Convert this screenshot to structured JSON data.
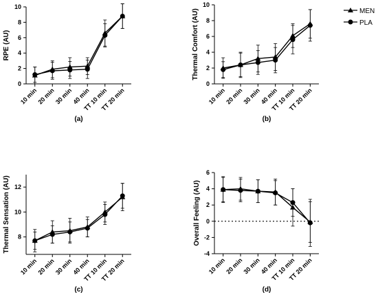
{
  "chart_data": [
    {
      "type": "line",
      "panel": "(a)",
      "ylabel": "RPE (AU)",
      "categories": [
        "10 min",
        "20 min",
        "30 min",
        "40 min",
        "TT 10 min",
        "TT 20 min"
      ],
      "ylim": [
        0,
        10
      ],
      "yticks": [
        0,
        2,
        4,
        6,
        8,
        10
      ],
      "series": [
        {
          "name": "MEN",
          "marker": "triangle",
          "values": [
            1.1,
            1.9,
            2.2,
            2.3,
            6.6,
            8.8
          ],
          "err": [
            1.1,
            1.1,
            1.2,
            1.1,
            1.7,
            1.6
          ]
        },
        {
          "name": "PLA",
          "marker": "circle",
          "values": [
            1.2,
            1.7,
            1.8,
            1.9,
            6.3,
            8.8
          ],
          "err": [
            1.0,
            1.1,
            1.1,
            1.2,
            1.5,
            1.6
          ]
        }
      ]
    },
    {
      "type": "line",
      "panel": "(b)",
      "ylabel": "Thermal Comfort (AU)",
      "categories": [
        "10 min",
        "20 min",
        "30 min",
        "40 min",
        "TT 10 min",
        "TT 20 min"
      ],
      "ylim": [
        0,
        10
      ],
      "yticks": [
        0,
        2,
        4,
        6,
        8,
        10
      ],
      "series": [
        {
          "name": "MEN",
          "marker": "triangle",
          "values": [
            2.0,
            2.4,
            3.2,
            3.4,
            6.1,
            7.6
          ],
          "err": [
            1.3,
            1.6,
            1.7,
            1.7,
            1.5,
            1.8
          ]
        },
        {
          "name": "PLA",
          "marker": "circle",
          "values": [
            1.8,
            2.4,
            2.7,
            3.0,
            5.6,
            7.4
          ],
          "err": [
            1.0,
            1.5,
            1.5,
            1.6,
            1.8,
            2.0
          ]
        }
      ]
    },
    {
      "type": "line",
      "panel": "(c)",
      "ylabel": "Thermal Sensation (AU)",
      "categories": [
        "10 min",
        "20 min",
        "30 min",
        "40 min",
        "TT 10 min",
        "TT 20 min"
      ],
      "ylim": [
        6.6,
        13
      ],
      "yticks": [
        8,
        10,
        12
      ],
      "series": [
        {
          "name": "MEN",
          "marker": "triangle",
          "values": [
            7.7,
            8.4,
            8.5,
            8.8,
            10.0,
            11.2
          ],
          "err": [
            0.9,
            0.9,
            1.0,
            0.8,
            0.8,
            1.1
          ]
        },
        {
          "name": "PLA",
          "marker": "circle",
          "values": [
            7.7,
            8.2,
            8.4,
            8.7,
            9.8,
            11.3
          ],
          "err": [
            0.7,
            0.7,
            0.8,
            0.7,
            0.8,
            1.0
          ]
        }
      ]
    },
    {
      "type": "line",
      "panel": "(d)",
      "ylabel": "Overall Feeling (AU)",
      "categories": [
        "10 min",
        "20 min",
        "30 min",
        "40 min",
        "TT 10 min",
        "TT 20 min"
      ],
      "ylim": [
        -4,
        6
      ],
      "yticks": [
        -4,
        -2,
        0,
        2,
        4,
        6
      ],
      "reference_line": 0,
      "series": [
        {
          "name": "MEN",
          "marker": "triangle",
          "values": [
            3.9,
            4.0,
            3.7,
            3.6,
            1.7,
            -0.1
          ],
          "err": [
            1.5,
            1.4,
            1.4,
            1.6,
            2.3,
            2.5
          ]
        },
        {
          "name": "PLA",
          "marker": "circle",
          "values": [
            3.9,
            3.8,
            3.7,
            3.5,
            2.3,
            -0.2
          ],
          "err": [
            1.6,
            1.4,
            1.4,
            1.5,
            1.7,
            2.9
          ]
        }
      ]
    }
  ],
  "legend": {
    "items": [
      {
        "label": "MEN",
        "marker": "triangle"
      },
      {
        "label": "PLA",
        "marker": "circle"
      }
    ],
    "placement": "top-right"
  }
}
